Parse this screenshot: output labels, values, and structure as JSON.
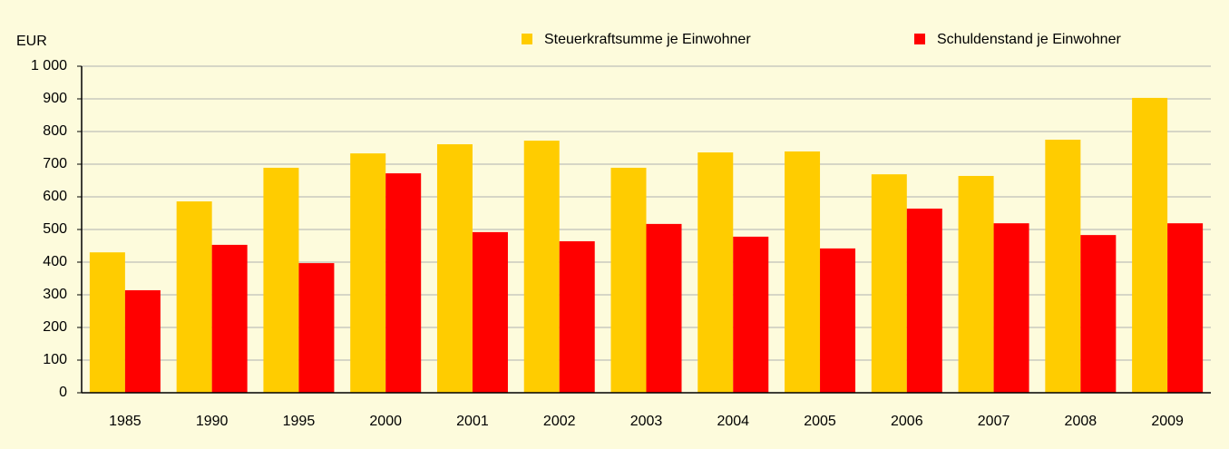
{
  "chart_data": {
    "type": "bar",
    "y_label": "EUR",
    "categories": [
      "1985",
      "1990",
      "1995",
      "2000",
      "2001",
      "2002",
      "2003",
      "2004",
      "2005",
      "2006",
      "2007",
      "2008",
      "2009"
    ],
    "series": [
      {
        "name": "Steuerkraftsumme je Einwohner",
        "color": "#ffcc00",
        "values": [
          430,
          586,
          689,
          733,
          761,
          772,
          689,
          736,
          739,
          669,
          664,
          775,
          903
        ]
      },
      {
        "name": "Schuldenstand je Einwohner",
        "color": "#ff0000",
        "values": [
          314,
          453,
          397,
          672,
          492,
          464,
          517,
          478,
          442,
          564,
          519,
          483,
          519
        ]
      }
    ],
    "ylim": [
      0,
      1000
    ],
    "yticks": [
      0,
      100,
      200,
      300,
      400,
      500,
      600,
      700,
      800,
      900,
      {
        "value": 1000,
        "label": "1 000"
      }
    ],
    "grid": true,
    "legend": "top-right"
  }
}
